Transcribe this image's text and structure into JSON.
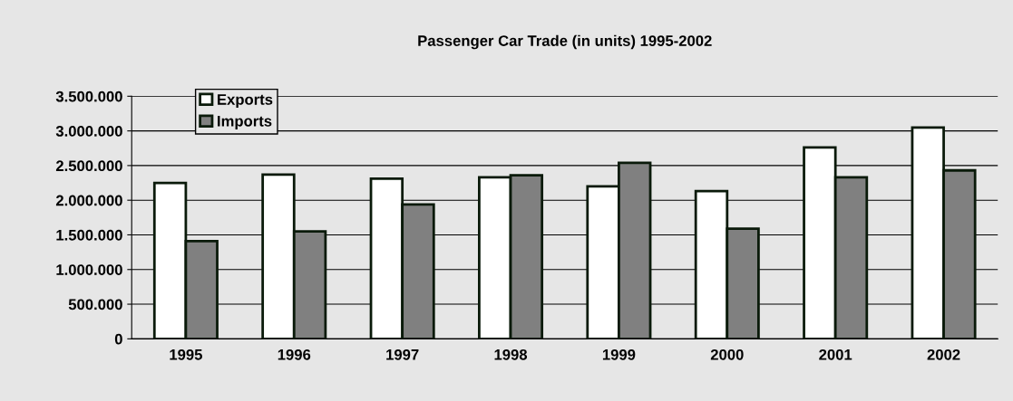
{
  "chart_data": {
    "type": "bar",
    "title": "Passenger Car Trade (in units) 1995-2002",
    "categories": [
      "1995",
      "1996",
      "1997",
      "1998",
      "1999",
      "2000",
      "2001",
      "2002"
    ],
    "series": [
      {
        "name": "Exports",
        "color": "#ffffff",
        "values": [
          2250000,
          2370000,
          2310000,
          2330000,
          2200000,
          2130000,
          2760000,
          3050000
        ]
      },
      {
        "name": "Imports",
        "color": "#808080",
        "values": [
          1410000,
          1550000,
          1940000,
          2360000,
          2540000,
          1590000,
          2330000,
          2430000
        ]
      }
    ],
    "ylim": [
      0,
      3500000
    ],
    "yticks": [
      0,
      {
        "value": 500000,
        "label": "500.000"
      },
      {
        "value": 1000000,
        "label": "1.000.000"
      },
      {
        "value": 1500000,
        "label": "1.500.000"
      },
      {
        "value": 2000000,
        "label": "2.000.000"
      },
      {
        "value": 2500000,
        "label": "2.500.000"
      },
      {
        "value": 3000000,
        "label": "3.000.000"
      },
      {
        "value": 3500000,
        "label": "3.500.000"
      }
    ],
    "grid": "y",
    "legend": "top left"
  }
}
